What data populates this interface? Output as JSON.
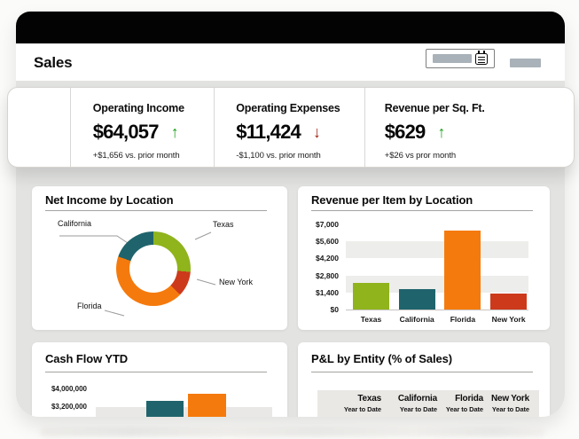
{
  "header": {
    "title": "Sales"
  },
  "icons": {
    "up_arrow": "↑",
    "down_arrow": "↓",
    "calendar": "calendar-icon"
  },
  "kpis": [
    {
      "label": "Operating Income",
      "value": "$64,057",
      "trend": "up",
      "delta": "+$1,656 vs. prior month"
    },
    {
      "label": "Operating Expenses",
      "value": "$11,424",
      "trend": "down",
      "delta": "-$1,100 vs. prior month"
    },
    {
      "label": "Revenue per Sq. Ft.",
      "value": "$629",
      "trend": "up",
      "delta": "+$26 vs pror month"
    }
  ],
  "colors": {
    "green": "#8fb41c",
    "teal": "#1f646c",
    "orange": "#f57a0d",
    "red": "#cc3a1b",
    "trend_up": "#1aa21a",
    "trend_down": "#9d1d0d"
  },
  "chart_data": [
    {
      "type": "donut",
      "title": "Net Income by Location",
      "slices": [
        {
          "label": "Texas",
          "color": "green",
          "start_deg": 0,
          "end_deg": 95,
          "pct_estimate": 26
        },
        {
          "label": "New York",
          "color": "red",
          "start_deg": 95,
          "end_deg": 134,
          "pct_estimate": 11
        },
        {
          "label": "Florida",
          "color": "orange",
          "start_deg": 134,
          "end_deg": 289,
          "pct_estimate": 43
        },
        {
          "label": "California",
          "color": "teal",
          "start_deg": 289,
          "end_deg": 360,
          "pct_estimate": 20
        }
      ]
    },
    {
      "type": "bar",
      "title": "Revenue per Item by Location",
      "categories": [
        "Texas",
        "California",
        "Florida",
        "New York"
      ],
      "values": [
        2200,
        1650,
        6500,
        1300
      ],
      "bar_colors": [
        "green",
        "teal",
        "orange",
        "red"
      ],
      "ylim": [
        0,
        7000
      ],
      "yticks": [
        {
          "label": "$7,000",
          "value": 7000
        },
        {
          "label": "$5,600",
          "value": 5600
        },
        {
          "label": "$4,200",
          "value": 4200
        },
        {
          "label": "$2,800",
          "value": 2800
        },
        {
          "label": "$1,400",
          "value": 1400
        },
        {
          "label": "$0",
          "value": 0
        }
      ],
      "bands": [
        [
          1400,
          2800
        ],
        [
          4200,
          5600
        ]
      ]
    },
    {
      "type": "bar",
      "title": "Cash Flow YTD",
      "yticks": [
        {
          "label": "$4,000,000",
          "value": 4000000
        },
        {
          "label": "$3,200,000",
          "value": 3200000
        }
      ],
      "bars": [
        {
          "color": "teal",
          "value": 3480000
        },
        {
          "color": "orange",
          "value": 3800000
        }
      ]
    },
    {
      "type": "table",
      "title": "P&L by Entity (% of Sales)",
      "columns": [
        "Texas",
        "California",
        "Florida",
        "New York"
      ],
      "column_subtitle": "Year to Date"
    }
  ]
}
